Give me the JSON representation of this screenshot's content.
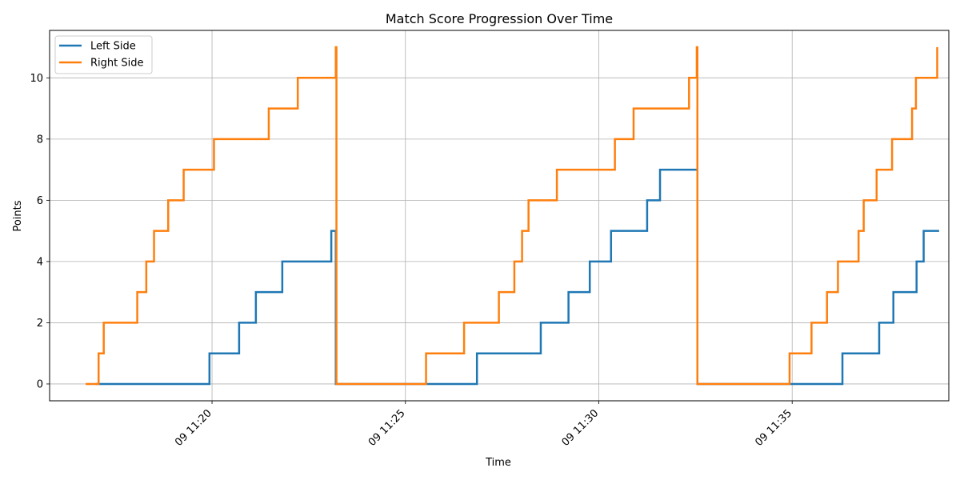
{
  "chart_data": {
    "type": "line",
    "step": true,
    "title": "Match Score Progression Over Time",
    "xlabel": "Time",
    "ylabel": "Points",
    "xlim": [
      "2024-01-09T11:15:48",
      "2024-01-09T11:39:03"
    ],
    "ylim": [
      -0.55,
      11.55
    ],
    "x_ticks": [
      "2024-01-09T11:20:00",
      "2024-01-09T11:25:00",
      "2024-01-09T11:30:00",
      "2024-01-09T11:35:00"
    ],
    "x_tick_labels": [
      "09 11:20",
      "09 11:25",
      "09 11:30",
      "09 11:35"
    ],
    "y_ticks": [
      0,
      2,
      4,
      6,
      8,
      10
    ],
    "y_tick_labels": [
      "0",
      "2",
      "4",
      "6",
      "8",
      "10"
    ],
    "grid": true,
    "legend_position": "top-left",
    "series": [
      {
        "name": "Left Side",
        "color": "#1f77b4",
        "points": [
          [
            "2024-01-09T11:17:00",
            0
          ],
          [
            "2024-01-09T11:19:56",
            1
          ],
          [
            "2024-01-09T11:20:42",
            2
          ],
          [
            "2024-01-09T11:21:08",
            3
          ],
          [
            "2024-01-09T11:21:49",
            4
          ],
          [
            "2024-01-09T11:23:05",
            5
          ],
          [
            "2024-01-09T11:23:12",
            0
          ],
          [
            "2024-01-09T11:26:51",
            1
          ],
          [
            "2024-01-09T11:28:30",
            2
          ],
          [
            "2024-01-09T11:29:13",
            3
          ],
          [
            "2024-01-09T11:29:46",
            4
          ],
          [
            "2024-01-09T11:30:19",
            5
          ],
          [
            "2024-01-09T11:31:15",
            6
          ],
          [
            "2024-01-09T11:31:35",
            7
          ],
          [
            "2024-01-09T11:32:33",
            0
          ],
          [
            "2024-01-09T11:36:18",
            1
          ],
          [
            "2024-01-09T11:37:15",
            2
          ],
          [
            "2024-01-09T11:37:37",
            3
          ],
          [
            "2024-01-09T11:38:13",
            4
          ],
          [
            "2024-01-09T11:38:24",
            5
          ],
          [
            "2024-01-09T11:38:48",
            5
          ]
        ]
      },
      {
        "name": "Right Side",
        "color": "#ff7f0e",
        "points": [
          [
            "2024-01-09T11:16:44",
            0
          ],
          [
            "2024-01-09T11:17:04",
            1
          ],
          [
            "2024-01-09T11:17:12",
            2
          ],
          [
            "2024-01-09T11:18:04",
            3
          ],
          [
            "2024-01-09T11:18:18",
            4
          ],
          [
            "2024-01-09T11:18:30",
            5
          ],
          [
            "2024-01-09T11:18:52",
            6
          ],
          [
            "2024-01-09T11:19:16",
            7
          ],
          [
            "2024-01-09T11:20:03",
            8
          ],
          [
            "2024-01-09T11:21:28",
            9
          ],
          [
            "2024-01-09T11:22:13",
            10
          ],
          [
            "2024-01-09T11:23:12",
            11
          ],
          [
            "2024-01-09T11:23:13",
            0
          ],
          [
            "2024-01-09T11:25:32",
            1
          ],
          [
            "2024-01-09T11:26:31",
            2
          ],
          [
            "2024-01-09T11:27:25",
            3
          ],
          [
            "2024-01-09T11:27:49",
            4
          ],
          [
            "2024-01-09T11:28:01",
            5
          ],
          [
            "2024-01-09T11:28:11",
            6
          ],
          [
            "2024-01-09T11:28:55",
            7
          ],
          [
            "2024-01-09T11:30:25",
            8
          ],
          [
            "2024-01-09T11:30:54",
            9
          ],
          [
            "2024-01-09T11:32:20",
            10
          ],
          [
            "2024-01-09T11:32:32",
            11
          ],
          [
            "2024-01-09T11:32:33",
            0
          ],
          [
            "2024-01-09T11:34:56",
            1
          ],
          [
            "2024-01-09T11:35:30",
            2
          ],
          [
            "2024-01-09T11:35:54",
            3
          ],
          [
            "2024-01-09T11:36:11",
            4
          ],
          [
            "2024-01-09T11:36:43",
            5
          ],
          [
            "2024-01-09T11:36:51",
            6
          ],
          [
            "2024-01-09T11:37:11",
            7
          ],
          [
            "2024-01-09T11:37:35",
            8
          ],
          [
            "2024-01-09T11:38:06",
            9
          ],
          [
            "2024-01-09T11:38:12",
            10
          ],
          [
            "2024-01-09T11:38:45",
            11
          ]
        ]
      }
    ]
  }
}
